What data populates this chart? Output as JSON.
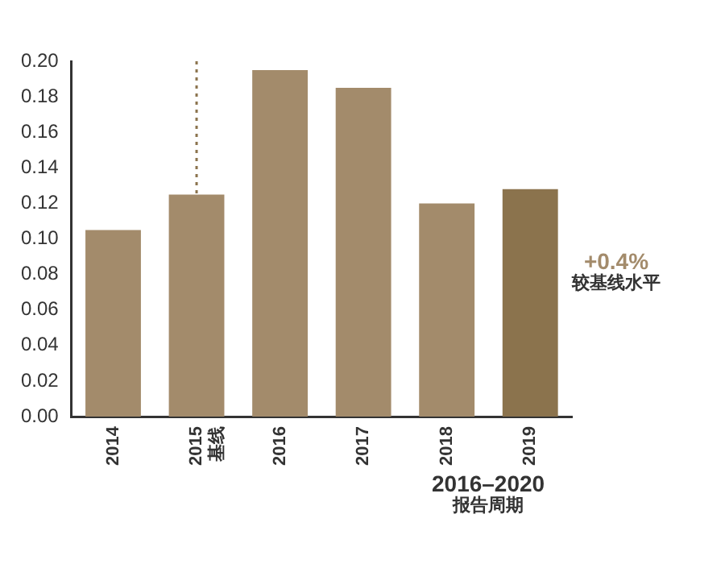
{
  "chart_data": {
    "type": "bar",
    "categories": [
      "2014",
      "2015\n基线",
      "2016",
      "2017",
      "2018",
      "2019"
    ],
    "values": [
      0.105,
      0.125,
      0.195,
      0.185,
      0.12,
      0.128
    ],
    "colors": [
      "#a38b6b",
      "#a38b6b",
      "#a38b6b",
      "#a38b6b",
      "#a38b6b",
      "#8b734d"
    ],
    "ylim": [
      0,
      0.2
    ],
    "yticks": [
      {
        "value": 0,
        "label": "0.00"
      },
      {
        "value": 0.02,
        "label": "0.02"
      },
      {
        "value": 0.04,
        "label": "0.04"
      },
      {
        "value": 0.06,
        "label": "0.06"
      },
      {
        "value": 0.08,
        "label": "0.08"
      },
      {
        "value": 0.1,
        "label": "0.10"
      },
      {
        "value": 0.12,
        "label": "0.12"
      },
      {
        "value": 0.14,
        "label": "0.14"
      },
      {
        "value": 0.16,
        "label": "0.16"
      },
      {
        "value": 0.18,
        "label": "0.18"
      },
      {
        "value": 0.2,
        "label": "0.20"
      }
    ],
    "grid": false,
    "legend": false,
    "ref_lines": [
      {
        "axis": "x",
        "value": "2015\n基线",
        "color": "#8b734d",
        "line_style": "dotted"
      }
    ],
    "annotations": [
      "+0.4%\n较基线水平",
      "2016–2020\n报告周期"
    ]
  }
}
